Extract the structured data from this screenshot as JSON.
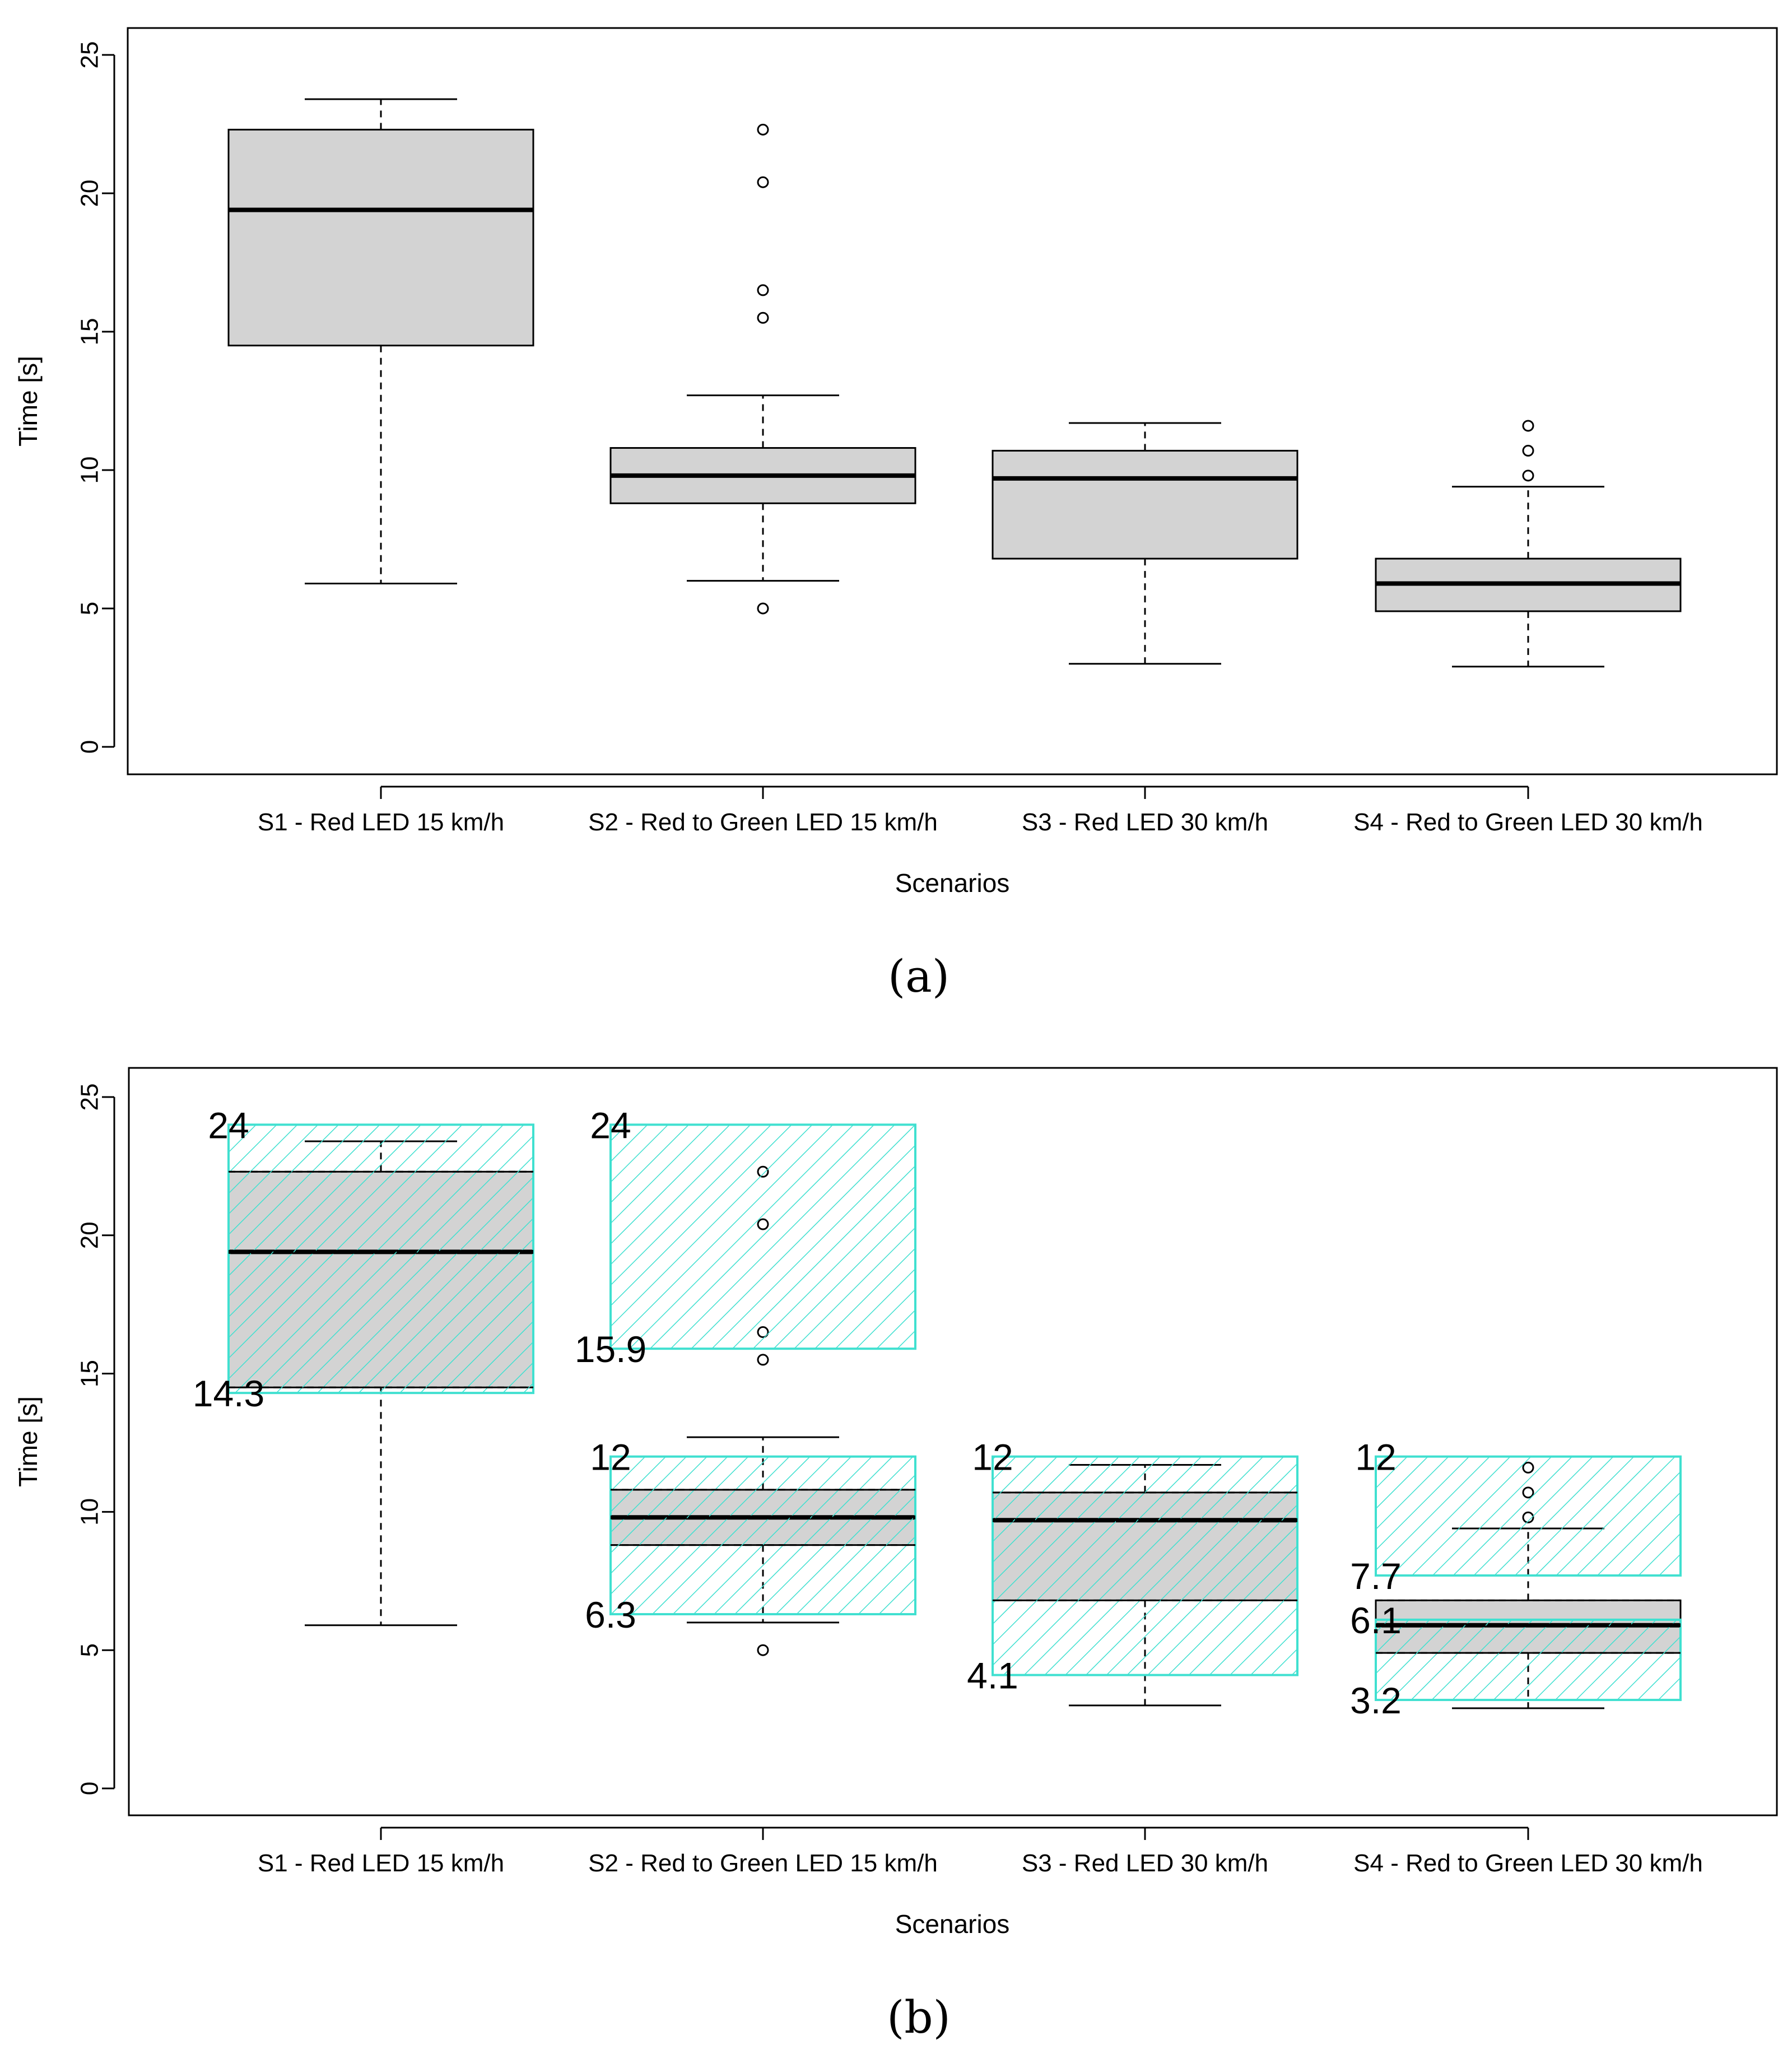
{
  "chart_data": [
    {
      "type": "box",
      "panel_label": "(a)",
      "xlabel": "Scenarios",
      "ylabel": "Time [s]",
      "ylim": [
        0,
        25
      ],
      "yticks": [
        "0",
        "5",
        "10",
        "15",
        "20",
        "25"
      ],
      "categories": [
        "S1 - Red LED 15 km/h",
        "S2 - Red to Green LED 15 km/h",
        "S3 - Red LED 30 km/h",
        "S4 - Red to Green LED 30 km/h"
      ],
      "boxes": [
        {
          "whisker_low": 5.9,
          "q1": 14.5,
          "median": 19.4,
          "q3": 22.3,
          "whisker_high": 23.4,
          "outliers": []
        },
        {
          "whisker_low": 6.0,
          "q1": 8.8,
          "median": 9.8,
          "q3": 10.8,
          "whisker_high": 12.7,
          "outliers": [
            5.0,
            15.5,
            16.5,
            20.4,
            22.3
          ]
        },
        {
          "whisker_low": 3.0,
          "q1": 6.8,
          "median": 9.7,
          "q3": 10.7,
          "whisker_high": 11.7,
          "outliers": []
        },
        {
          "whisker_low": 2.9,
          "q1": 4.9,
          "median": 5.9,
          "q3": 6.8,
          "whisker_high": 9.4,
          "outliers": [
            9.8,
            10.7,
            11.6
          ]
        }
      ],
      "box_color": "#d3d3d3"
    },
    {
      "type": "box",
      "panel_label": "(b)",
      "xlabel": "Scenarios",
      "ylabel": "Time [s]",
      "ylim": [
        0,
        25
      ],
      "yticks": [
        "0",
        "5",
        "10",
        "15",
        "20",
        "25"
      ],
      "categories": [
        "S1 - Red LED 15 km/h",
        "S2 - Red to Green LED 15 km/h",
        "S3 - Red LED 30 km/h",
        "S4 - Red to Green LED 30 km/h"
      ],
      "boxes": [
        {
          "whisker_low": 5.9,
          "q1": 14.5,
          "median": 19.4,
          "q3": 22.3,
          "whisker_high": 23.4,
          "outliers": []
        },
        {
          "whisker_low": 6.0,
          "q1": 8.8,
          "median": 9.8,
          "q3": 10.8,
          "whisker_high": 12.7,
          "outliers": [
            5.0,
            15.5,
            16.5,
            20.4,
            22.3
          ]
        },
        {
          "whisker_low": 3.0,
          "q1": 6.8,
          "median": 9.7,
          "q3": 10.7,
          "whisker_high": 11.7,
          "outliers": []
        },
        {
          "whisker_low": 2.9,
          "q1": 4.9,
          "median": 5.9,
          "q3": 6.8,
          "whisker_high": 9.4,
          "outliers": [
            9.8,
            10.7,
            11.6
          ]
        }
      ],
      "box_color": "#d3d3d3",
      "ranges": [
        {
          "category": 0,
          "low": 14.3,
          "high": 24,
          "low_label": "14.3",
          "high_label": "24"
        },
        {
          "category": 1,
          "low": 15.9,
          "high": 24,
          "low_label": "15.9",
          "high_label": "24"
        },
        {
          "category": 1,
          "low": 6.3,
          "high": 12,
          "low_label": "6.3",
          "high_label": "12"
        },
        {
          "category": 2,
          "low": 4.1,
          "high": 12,
          "low_label": "4.1",
          "high_label": "12"
        },
        {
          "category": 3,
          "low": 7.7,
          "high": 12,
          "low_label": "7.7",
          "high_label": "12"
        },
        {
          "category": 3,
          "low": 3.2,
          "high": 6.1,
          "low_label": "3.2",
          "high_label": "6.1"
        }
      ],
      "range_color": "#40e0d0"
    }
  ]
}
